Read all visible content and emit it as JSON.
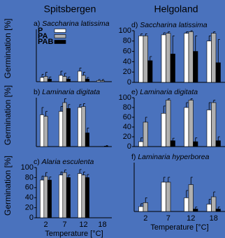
{
  "headers": [
    "Spitsbergen",
    "Helgoland"
  ],
  "chart_data": [
    {
      "type": "bar",
      "label": "a)",
      "title": "Saccharina latissima",
      "ylabel": "Germination [%]",
      "ylim": [
        0,
        100
      ],
      "legend": "upper left",
      "series": [
        {
          "name": "P",
          "color": "#ffffff",
          "values": [
            8,
            12,
            20,
            2
          ],
          "errors": [
            6,
            8,
            6,
            2
          ]
        },
        {
          "name": "PA",
          "color": "#b0b0b0",
          "values": [
            10,
            10,
            12,
            2
          ],
          "errors": [
            8,
            6,
            6,
            2
          ]
        },
        {
          "name": "PAB",
          "color": "#000000",
          "values": [
            5,
            5,
            5,
            0
          ],
          "errors": [
            4,
            4,
            3,
            0
          ]
        }
      ]
    },
    {
      "type": "bar",
      "label": "b)",
      "title": "Laminaria digitata",
      "ylabel": "Germination [%]",
      "ylim": [
        0,
        100
      ],
      "series": [
        {
          "color": "#ffffff",
          "values": [
            65,
            72,
            80,
            0
          ],
          "errors": [
            15,
            10,
            6,
            0
          ]
        },
        {
          "color": "#b0b0b0",
          "values": [
            62,
            90,
            82,
            0
          ],
          "errors": [
            10,
            8,
            6,
            0
          ]
        },
        {
          "color": "#000000",
          "values": [
            0,
            78,
            28,
            1
          ],
          "errors": [
            0,
            8,
            10,
            1
          ]
        }
      ]
    },
    {
      "type": "bar",
      "label": "c)",
      "title": "Alaria esculenta",
      "ylabel": "Germination [%]",
      "xlabel": "Temperature [°C]",
      "categories": [
        "2",
        "7",
        "12",
        "18"
      ],
      "ylim": [
        0,
        100
      ],
      "yticks": [
        0,
        20,
        40,
        60,
        80,
        100
      ],
      "series": [
        {
          "color": "#ffffff",
          "values": [
            75,
            85,
            88,
            0
          ],
          "errors": [
            8,
            6,
            8,
            0
          ]
        },
        {
          "color": "#b0b0b0",
          "values": [
            82,
            90,
            85,
            0
          ],
          "errors": [
            8,
            5,
            6,
            0
          ]
        },
        {
          "color": "#000000",
          "values": [
            75,
            80,
            80,
            0
          ],
          "errors": [
            6,
            5,
            6,
            0
          ]
        }
      ]
    },
    {
      "type": "bar",
      "label": "d)",
      "title": "Saccharina latissima",
      "ylim": [
        0,
        100
      ],
      "yticks": [
        0,
        20,
        40,
        60,
        80,
        100
      ],
      "series": [
        {
          "color": "#ffffff",
          "values": [
            90,
            92,
            95,
            80
          ],
          "errors": [
            4,
            4,
            3,
            10
          ]
        },
        {
          "color": "#b0b0b0",
          "values": [
            90,
            95,
            98,
            95
          ],
          "errors": [
            4,
            3,
            2,
            3
          ]
        },
        {
          "color": "#000000",
          "values": [
            42,
            55,
            60,
            38
          ],
          "errors": [
            8,
            35,
            30,
            45
          ]
        }
      ]
    },
    {
      "type": "bar",
      "label": "e)",
      "title": "Laminaria digitata",
      "ylim": [
        0,
        100
      ],
      "yticks": [
        0,
        20,
        40,
        60,
        80,
        100
      ],
      "series": [
        {
          "color": "#ffffff",
          "values": [
            10,
            68,
            80,
            75
          ],
          "errors": [
            8,
            15,
            10,
            15
          ]
        },
        {
          "color": "#b0b0b0",
          "values": [
            50,
            95,
            95,
            90
          ],
          "errors": [
            10,
            3,
            3,
            5
          ]
        },
        {
          "color": "#000000",
          "values": [
            0,
            12,
            10,
            12
          ],
          "errors": [
            0,
            5,
            8,
            8
          ]
        }
      ]
    },
    {
      "type": "bar",
      "label": "f)",
      "title": "Laminaria hyperborea",
      "xlabel": "Temperature [°C]",
      "categories": [
        "2",
        "7",
        "12",
        "18"
      ],
      "ylim": [
        0,
        100
      ],
      "series": [
        {
          "color": "#ffffff",
          "values": [
            10,
            60,
            28,
            15
          ],
          "errors": [
            6,
            10,
            15,
            10
          ]
        },
        {
          "color": "#b0b0b0",
          "values": [
            18,
            60,
            55,
            30
          ],
          "errors": [
            10,
            10,
            15,
            10
          ]
        },
        {
          "color": "#000000",
          "values": [
            0,
            0,
            5,
            5
          ],
          "errors": [
            0,
            0,
            4,
            4
          ]
        }
      ]
    }
  ]
}
